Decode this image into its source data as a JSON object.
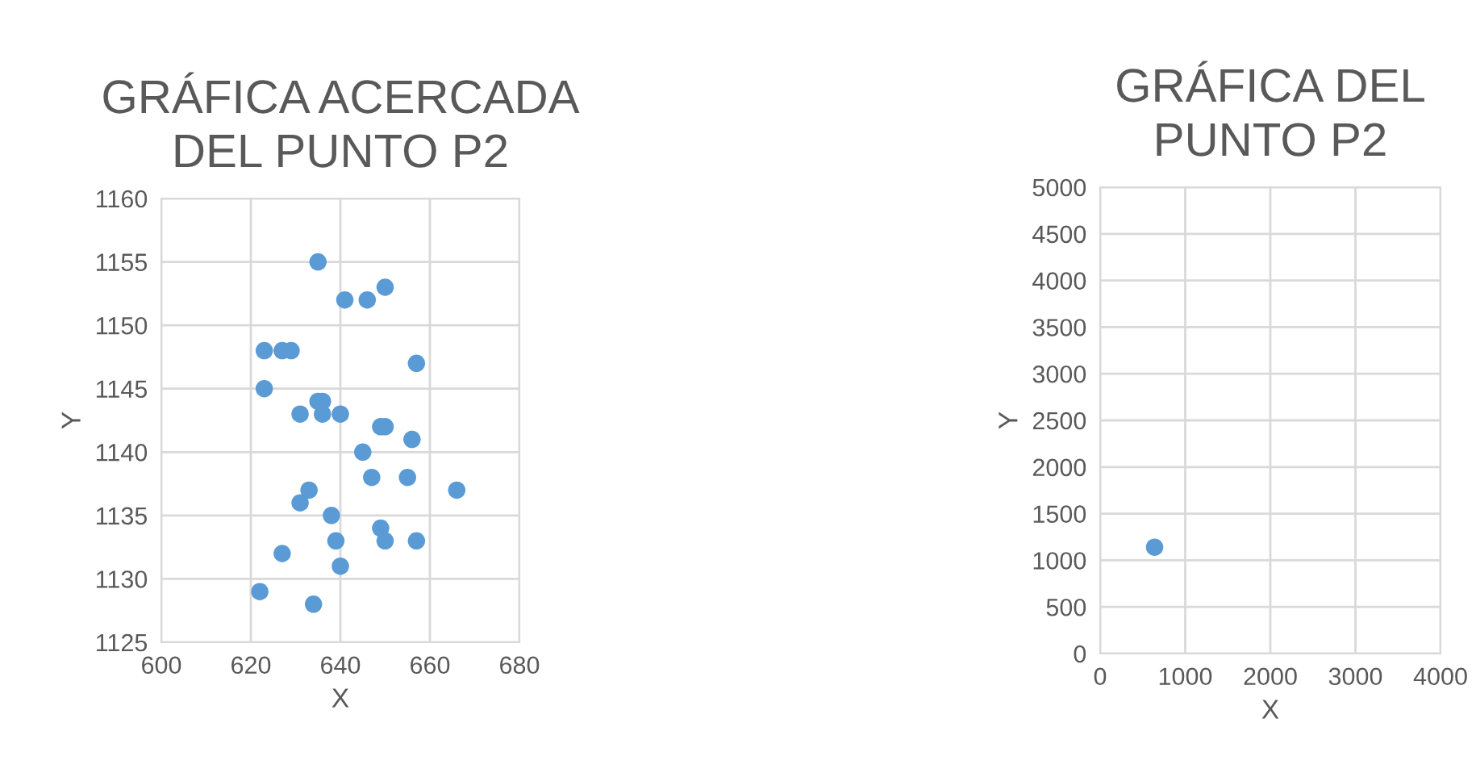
{
  "chart_data": [
    {
      "type": "scatter",
      "title": "GRÁFICA ACERCADA\nDEL PUNTO P2",
      "xlabel": "X",
      "ylabel": "Y",
      "xlim": [
        600,
        680
      ],
      "xticks": [
        600,
        620,
        640,
        660,
        680
      ],
      "ylim": [
        1125,
        1160
      ],
      "yticks": [
        1125,
        1130,
        1135,
        1140,
        1145,
        1150,
        1155,
        1160
      ],
      "grid": true,
      "marker": "circle",
      "legend": false,
      "series": [
        {
          "color": "#5b9bd5",
          "x": [
            635,
            641,
            646,
            650,
            623,
            627,
            629,
            657,
            623,
            635,
            636,
            631,
            636,
            640,
            649,
            650,
            656,
            645,
            647,
            655,
            633,
            666,
            631,
            638,
            649,
            639,
            650,
            657,
            627,
            640,
            622,
            634
          ],
          "values": [
            1155,
            1152,
            1152,
            1153,
            1148,
            1148,
            1148,
            1147,
            1145,
            1144,
            1144,
            1143,
            1143,
            1143,
            1142,
            1142,
            1141,
            1140,
            1138,
            1138,
            1137,
            1137,
            1136,
            1135,
            1134,
            1133,
            1133,
            1133,
            1132,
            1131,
            1129,
            1128
          ]
        }
      ]
    },
    {
      "type": "scatter",
      "title": "GRÁFICA DEL\nPUNTO P2",
      "xlabel": "X",
      "ylabel": "Y",
      "xlim": [
        0,
        4000
      ],
      "xticks": [
        0,
        1000,
        2000,
        3000,
        4000
      ],
      "ylim": [
        0,
        5000
      ],
      "yticks": [
        0,
        500,
        1000,
        1500,
        2000,
        2500,
        3000,
        3500,
        4000,
        4500,
        5000
      ],
      "grid": true,
      "marker": "circle",
      "legend": false,
      "series": [
        {
          "color": "#5b9bd5",
          "x": [
            640
          ],
          "values": [
            1140
          ]
        }
      ]
    }
  ]
}
